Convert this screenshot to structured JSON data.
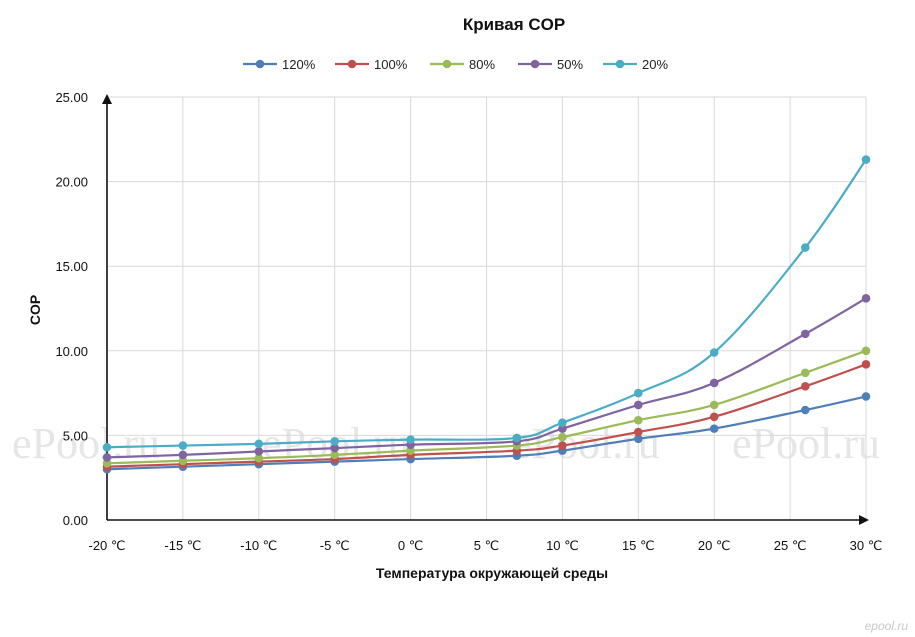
{
  "watermark_text": "ePool.ru",
  "corner_mark": "epool.ru",
  "chart_data": {
    "type": "line",
    "title": "Кривая COP",
    "xlabel": "Температура окружающей среды",
    "ylabel": "COP",
    "x": [
      -20,
      -15,
      -10,
      -5,
      0,
      7,
      10,
      15,
      20,
      26,
      30
    ],
    "x_tick_values": [
      -20,
      -15,
      -10,
      -5,
      0,
      5,
      10,
      15,
      20,
      25,
      30
    ],
    "x_tick_labels": [
      "-20 ℃",
      "-15 ℃",
      "-10 ℃",
      "-5 ℃",
      "0 ℃",
      "5 ℃",
      "10 ℃",
      "15 ℃",
      "20 ℃",
      "25 ℃",
      "30 ℃"
    ],
    "y_tick_values": [
      0,
      5,
      10,
      15,
      20,
      25
    ],
    "y_tick_labels": [
      "0.00",
      "5.00",
      "10.00",
      "15.00",
      "20.00",
      "25.00"
    ],
    "xlim": [
      -20,
      30
    ],
    "ylim": [
      0,
      25
    ],
    "grid": true,
    "legend": "top",
    "series": [
      {
        "name": "120%",
        "color": "#4f7fb8",
        "values": [
          3.0,
          3.15,
          3.3,
          3.45,
          3.6,
          3.8,
          4.1,
          4.8,
          5.4,
          6.5,
          7.3
        ]
      },
      {
        "name": "100%",
        "color": "#c0504d",
        "values": [
          3.15,
          3.3,
          3.45,
          3.6,
          3.85,
          4.1,
          4.4,
          5.2,
          6.1,
          7.9,
          9.2
        ]
      },
      {
        "name": "80%",
        "color": "#9bbb59",
        "values": [
          3.35,
          3.5,
          3.65,
          3.85,
          4.1,
          4.4,
          4.9,
          5.9,
          6.8,
          8.7,
          10.0
        ]
      },
      {
        "name": "50%",
        "color": "#8064a2",
        "values": [
          3.7,
          3.85,
          4.05,
          4.25,
          4.45,
          4.65,
          5.4,
          6.8,
          8.1,
          11.0,
          13.1
        ]
      },
      {
        "name": "20%",
        "color": "#4bacc6",
        "values": [
          4.3,
          4.4,
          4.5,
          4.65,
          4.75,
          4.85,
          5.75,
          7.5,
          9.9,
          16.1,
          21.3
        ]
      }
    ]
  }
}
